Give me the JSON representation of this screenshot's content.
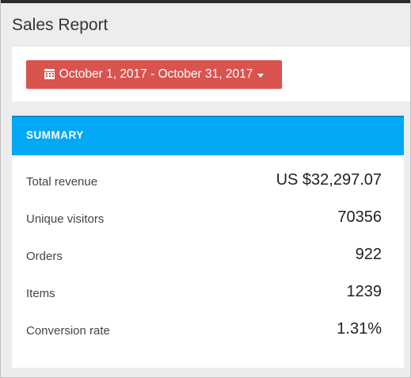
{
  "header": {
    "title": "Sales Report"
  },
  "date_range": {
    "label": "October 1, 2017 - October 31, 2017",
    "icon": "calendar-icon",
    "dropdown_icon": "caret-down-icon",
    "color": "#d9534f"
  },
  "summary": {
    "title": "SUMMARY",
    "header_color": "#03a9f4",
    "metrics": [
      {
        "label": "Total revenue",
        "value": "US $32,297.07"
      },
      {
        "label": "Unique visitors",
        "value": "70356"
      },
      {
        "label": "Orders",
        "value": "922"
      },
      {
        "label": "Items",
        "value": "1239"
      },
      {
        "label": "Conversion rate",
        "value": "1.31%"
      }
    ]
  }
}
